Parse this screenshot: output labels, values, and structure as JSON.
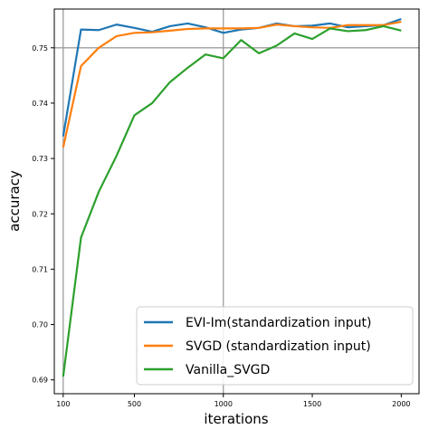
{
  "chart_data": {
    "type": "line",
    "title": "",
    "xlabel": "iterations",
    "ylabel": "accuracy",
    "xlim": [
      50,
      2100
    ],
    "ylim": [
      0.6875,
      0.757
    ],
    "x_ticks": [
      100,
      500,
      1000,
      1500,
      2000
    ],
    "x_tick_labels": [
      "100",
      "500",
      "1000",
      "1500",
      "2000"
    ],
    "y_ticks": [
      0.69,
      0.7,
      0.71,
      0.72,
      0.73,
      0.74,
      0.75
    ],
    "y_tick_labels": [
      "0.69",
      "0.70",
      "0.71",
      "0.72",
      "0.73",
      "0.74",
      "0.75"
    ],
    "grid_lines": {
      "x": [
        100,
        1000
      ],
      "y": [
        0.75
      ]
    },
    "legend_position": "lower-right",
    "x": [
      100,
      200,
      300,
      400,
      500,
      600,
      700,
      800,
      900,
      1000,
      1100,
      1200,
      1300,
      1400,
      1500,
      1600,
      1700,
      1800,
      1900,
      2000
    ],
    "series": [
      {
        "name": "EVI-Im(standardization input)",
        "color": "#1f77b4",
        "values": [
          0.734,
          0.7533,
          0.7532,
          0.7542,
          0.7536,
          0.7529,
          0.7539,
          0.7544,
          0.7537,
          0.7527,
          0.7533,
          0.7536,
          0.7544,
          0.7539,
          0.754,
          0.7544,
          0.7537,
          0.7539,
          0.7541,
          0.7552
        ]
      },
      {
        "name": "SVGD (standardization input)",
        "color": "#ff7f0e",
        "values": [
          0.732,
          0.7467,
          0.75,
          0.7521,
          0.7527,
          0.7528,
          0.7531,
          0.7534,
          0.7535,
          0.7535,
          0.7535,
          0.7536,
          0.7542,
          0.7539,
          0.7537,
          0.7536,
          0.7541,
          0.7541,
          0.7541,
          0.7547
        ]
      },
      {
        "name": "Vanilla_SVGD",
        "color": "#2ca02c",
        "values": [
          0.6906,
          0.7157,
          0.724,
          0.7305,
          0.7378,
          0.74,
          0.7438,
          0.7464,
          0.7488,
          0.7481,
          0.7514,
          0.749,
          0.7504,
          0.7526,
          0.7516,
          0.7535,
          0.753,
          0.7532,
          0.7539,
          0.7531
        ]
      }
    ]
  }
}
